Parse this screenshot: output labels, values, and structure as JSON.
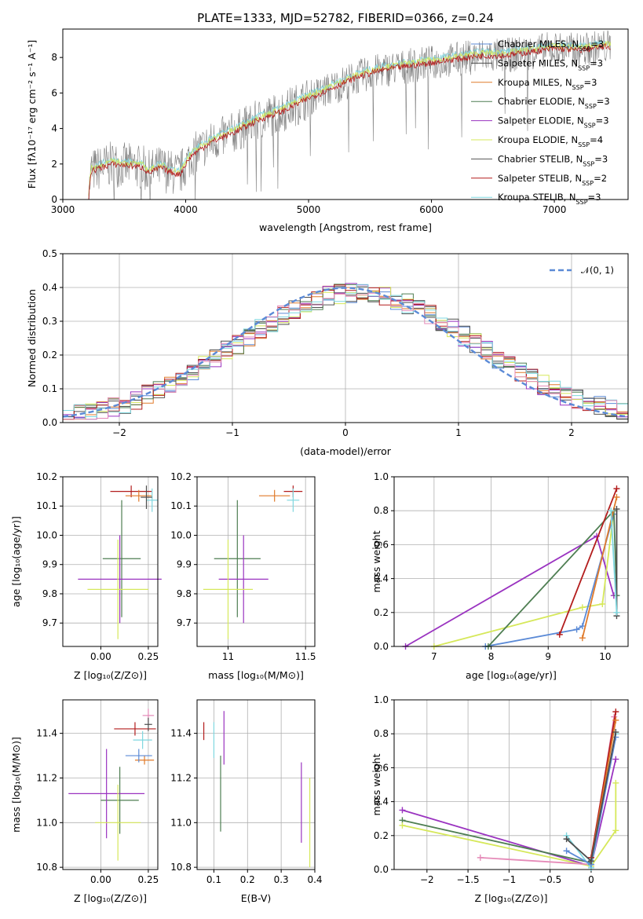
{
  "title": "PLATE=1333, MJD=52782, FIBERID=0366, z=0.24",
  "colors": {
    "Chabrier MILES": "#5b8ad6",
    "Salpeter MILES": "#4d4d4d",
    "Kroupa MILES": "#e07a2a",
    "Chabrier ELODIE": "#4e7e52",
    "Salpeter ELODIE": "#9a33c0",
    "Kroupa ELODIE": "#d6e85a",
    "Chabrier STELIB": "#555555",
    "Salpeter STELIB": "#b31d1d",
    "Kroupa STELIB": "#7fd7df",
    "data": "#808080",
    "extra": "#e58ab8"
  },
  "legend": [
    {
      "name": "Chabrier MILES",
      "n": "3"
    },
    {
      "name": "Salpeter MILES",
      "n": "3"
    },
    {
      "name": "Kroupa MILES",
      "n": "3"
    },
    {
      "name": "Chabrier ELODIE",
      "n": "3"
    },
    {
      "name": "Salpeter ELODIE",
      "n": "3"
    },
    {
      "name": "Kroupa ELODIE",
      "n": "4"
    },
    {
      "name": "Chabrier STELIB",
      "n": "3"
    },
    {
      "name": "Salpeter STELIB",
      "n": "2"
    },
    {
      "name": "Kroupa STELIB",
      "n": "3"
    }
  ],
  "chart_data": [
    {
      "type": "line",
      "title": "PLATE=1333, MJD=52782, FIBERID=0366, z=0.24",
      "xlabel": "wavelength [Angstrom, rest frame]",
      "ylabel": "Flux [f_λ 10^-17 erg cm^-2 s^-1 A^-1]",
      "xlim": [
        3000,
        7600
      ],
      "ylim": [
        0,
        9.6
      ],
      "xticks": [
        3000,
        4000,
        5000,
        6000,
        7000
      ],
      "yticks": [
        0,
        2,
        4,
        6,
        8
      ],
      "model_anchors": {
        "x": [
          3210,
          3230,
          3400,
          3550,
          3650,
          3700,
          3800,
          3850,
          3950,
          4000,
          4050,
          4200,
          4400,
          4600,
          4800,
          5000,
          5200,
          5400,
          5600,
          5800,
          6000,
          6200,
          6400,
          6600,
          6800,
          7000,
          7200,
          7400
        ],
        "y": [
          0.1,
          1.6,
          2.0,
          1.9,
          1.8,
          1.5,
          1.8,
          1.6,
          1.4,
          2.0,
          2.5,
          3.2,
          3.8,
          4.5,
          5.0,
          5.7,
          6.3,
          6.9,
          7.3,
          7.5,
          7.7,
          7.9,
          8.1,
          8.1,
          8.3,
          8.5,
          8.4,
          8.6
        ]
      },
      "legend_position": "top-right"
    },
    {
      "type": "histogram",
      "xlabel": "(data-model)/error",
      "ylabel": "Normed distribution",
      "xlim": [
        -2.5,
        2.5
      ],
      "ylim": [
        0,
        0.5
      ],
      "xticks": [
        -2,
        -1,
        0,
        1,
        2
      ],
      "yticks": [
        0,
        0.1,
        0.2,
        0.3,
        0.4,
        0.5
      ],
      "legend": "𝒩(0, 1)",
      "grid": true
    },
    {
      "type": "scatter",
      "xlabel": "Z [log10(Z/Z⊙)]",
      "ylabel": "age [log10(age/yr)]",
      "xlim": [
        -0.2,
        0.3
      ],
      "ylim": [
        9.62,
        10.2
      ],
      "xticks": [
        0.0,
        0.25
      ],
      "yticks": [
        9.7,
        9.8,
        9.9,
        10.0,
        10.1,
        10.2
      ],
      "points": [
        {
          "s": "Salpeter STELIB",
          "x": 0.16,
          "xe": 0.11,
          "y": 10.15,
          "ye": 0.02
        },
        {
          "s": "Kroupa MILES",
          "x": 0.2,
          "xe": 0.07,
          "y": 10.135,
          "ye": 0.02
        },
        {
          "s": "Chabrier ELODIE",
          "x": 0.11,
          "xe": 0.1,
          "y": 9.92,
          "ye": 0.2
        },
        {
          "s": "Salpeter ELODIE",
          "x": 0.1,
          "xe": 0.22,
          "y": 9.85,
          "ye": 0.15
        },
        {
          "s": "Kroupa ELODIE",
          "x": 0.09,
          "xe": 0.16,
          "y": 9.815,
          "ye": 0.17
        },
        {
          "s": "Kroupa STELIB",
          "x": 0.27,
          "xe": 0.03,
          "y": 10.12,
          "ye": 0.04
        },
        {
          "s": "Salpeter MILES",
          "x": 0.24,
          "xe": 0.03,
          "y": 10.13,
          "ye": 0.04
        }
      ]
    },
    {
      "type": "scatter",
      "xlabel": "mass [log10(M/M⊙)]",
      "ylabel": "",
      "xlim": [
        10.8,
        11.56
      ],
      "ylim": [
        9.62,
        10.2
      ],
      "xticks": [
        11.0,
        11.5
      ],
      "yticks": [
        9.7,
        9.8,
        9.9,
        10.0,
        10.1,
        10.2
      ],
      "points": [
        {
          "s": "Kroupa MILES",
          "x": 11.3,
          "xe": 0.1,
          "y": 10.135,
          "ye": 0.02
        },
        {
          "s": "Salpeter STELIB",
          "x": 11.42,
          "xe": 0.06,
          "y": 10.15,
          "ye": 0.02
        },
        {
          "s": "Chabrier ELODIE",
          "x": 11.06,
          "xe": 0.15,
          "y": 9.92,
          "ye": 0.2
        },
        {
          "s": "Salpeter ELODIE",
          "x": 11.1,
          "xe": 0.16,
          "y": 9.85,
          "ye": 0.15
        },
        {
          "s": "Kroupa ELODIE",
          "x": 11.0,
          "xe": 0.16,
          "y": 9.815,
          "ye": 0.17
        },
        {
          "s": "Kroupa STELIB",
          "x": 11.42,
          "xe": 0.04,
          "y": 10.12,
          "ye": 0.04
        }
      ]
    },
    {
      "type": "line",
      "xlabel": "age [log10(age/yr)]",
      "ylabel": "mass weight",
      "xlim": [
        6.3,
        10.4
      ],
      "ylim": [
        0,
        1.0
      ],
      "xticks": [
        7,
        8,
        9,
        10
      ],
      "yticks": [
        0,
        0.2,
        0.4,
        0.6,
        0.8,
        1.0
      ],
      "series": [
        {
          "s": "Salpeter ELODIE",
          "x": [
            6.5,
            9.85,
            10.15
          ],
          "y": [
            0.0,
            0.65,
            0.3
          ]
        },
        {
          "s": "Kroupa ELODIE",
          "x": [
            7.0,
            9.6,
            9.95,
            10.15
          ],
          "y": [
            0.0,
            0.23,
            0.25,
            0.8
          ]
        },
        {
          "s": "Chabrier MILES",
          "x": [
            7.9,
            9.5,
            9.6,
            10.15
          ],
          "y": [
            0.0,
            0.1,
            0.12,
            0.78
          ]
        },
        {
          "s": "Chabrier ELODIE",
          "x": [
            7.95,
            10.15,
            10.2
          ],
          "y": [
            0.0,
            0.8,
            0.3
          ]
        },
        {
          "s": "Salpeter STELIB",
          "x": [
            9.2,
            10.2
          ],
          "y": [
            0.07,
            0.93
          ]
        },
        {
          "s": "Kroupa MILES",
          "x": [
            9.6,
            10.2
          ],
          "y": [
            0.05,
            0.88
          ]
        },
        {
          "s": "Salpeter MILES",
          "x": [
            10.2,
            10.2
          ],
          "y": [
            0.18,
            0.81
          ]
        },
        {
          "s": "Kroupa STELIB",
          "x": [
            10.1,
            10.2
          ],
          "y": [
            0.8,
            0.2
          ]
        }
      ]
    },
    {
      "type": "scatter",
      "xlabel": "Z [log10(Z/Z⊙)]",
      "ylabel": "mass [log10(M/M⊙)]",
      "xlim": [
        -0.2,
        0.3
      ],
      "ylim": [
        10.79,
        11.55
      ],
      "xticks": [
        0.0,
        0.25
      ],
      "yticks": [
        10.8,
        11.0,
        11.2,
        11.4
      ],
      "points": [
        {
          "s": "Salpeter STELIB",
          "x": 0.18,
          "xe": 0.11,
          "y": 11.42,
          "ye": 0.03
        },
        {
          "s": "Kroupa MILES",
          "x": 0.23,
          "xe": 0.05,
          "y": 11.28,
          "ye": 0.02
        },
        {
          "s": "Chabrier MILES",
          "x": 0.2,
          "xe": 0.07,
          "y": 11.3,
          "ye": 0.03
        },
        {
          "s": "Kroupa STELIB",
          "x": 0.22,
          "xe": 0.05,
          "y": 11.37,
          "ye": 0.04
        },
        {
          "s": "Chabrier ELODIE",
          "x": 0.1,
          "xe": 0.1,
          "y": 11.1,
          "ye": 0.15
        },
        {
          "s": "Salpeter ELODIE",
          "x": 0.03,
          "xe": 0.2,
          "y": 11.13,
          "ye": 0.2
        },
        {
          "s": "Kroupa ELODIE",
          "x": 0.09,
          "xe": 0.12,
          "y": 11.0,
          "ye": 0.17
        },
        {
          "s": "extra",
          "x": 0.25,
          "xe": 0.03,
          "y": 11.48,
          "ye": 0.03
        },
        {
          "s": "Salpeter MILES",
          "x": 0.25,
          "xe": 0.02,
          "y": 11.44,
          "ye": 0.03
        }
      ]
    },
    {
      "type": "scatter",
      "xlabel": "E(B-V)",
      "ylabel": "",
      "xlim": [
        0.05,
        0.4
      ],
      "ylim": [
        10.79,
        11.55
      ],
      "xticks": [
        0.1,
        0.2,
        0.3,
        0.4
      ],
      "yticks": [
        10.8,
        11.0,
        11.2,
        11.4
      ],
      "points": [
        {
          "s": "Salpeter STELIB",
          "x": 0.07,
          "y": 11.41,
          "ye": 0.04
        },
        {
          "s": "Kroupa STELIB",
          "x": 0.1,
          "y": 11.37,
          "ye": 0.08
        },
        {
          "s": "Chabrier ELODIE",
          "x": 0.12,
          "y": 11.13,
          "ye": 0.17
        },
        {
          "s": "Salpeter ELODIE",
          "x": 0.13,
          "y": 11.38,
          "ye": 0.12
        },
        {
          "s": "Salpeter ELODIE",
          "x": 0.36,
          "y": 11.09,
          "ye": 0.18
        },
        {
          "s": "Kroupa ELODIE",
          "x": 0.385,
          "y": 11.0,
          "ye": 0.2
        }
      ]
    },
    {
      "type": "line",
      "xlabel": "Z [log10(Z/Z⊙)]",
      "ylabel": "mass weight",
      "xlim": [
        -2.4,
        0.45
      ],
      "ylim": [
        0,
        1.0
      ],
      "xticks": [
        -2.0,
        -1.5,
        -1.0,
        -0.5,
        0.0
      ],
      "yticks": [
        0,
        0.2,
        0.4,
        0.6,
        0.8,
        1.0
      ],
      "series": [
        {
          "s": "Salpeter ELODIE",
          "x": [
            -2.3,
            0.0,
            0.3
          ],
          "y": [
            0.35,
            0.02,
            0.65
          ]
        },
        {
          "s": "Chabrier ELODIE",
          "x": [
            -2.3,
            0.0,
            0.3
          ],
          "y": [
            0.29,
            0.04,
            0.8
          ]
        },
        {
          "s": "Kroupa ELODIE",
          "x": [
            -2.3,
            0.0,
            0.3,
            0.3
          ],
          "y": [
            0.26,
            0.02,
            0.23,
            0.51
          ]
        },
        {
          "s": "extra",
          "x": [
            -1.35,
            0.0,
            0.28
          ],
          "y": [
            0.07,
            0.03,
            0.9
          ]
        },
        {
          "s": "Kroupa STELIB",
          "x": [
            -0.3,
            0.0,
            0.3
          ],
          "y": [
            0.2,
            0.01,
            0.8
          ]
        },
        {
          "s": "Chabrier MILES",
          "x": [
            -0.3,
            0.0,
            0.3
          ],
          "y": [
            0.11,
            0.03,
            0.78
          ]
        },
        {
          "s": "Salpeter STELIB",
          "x": [
            0.0,
            0.3
          ],
          "y": [
            0.07,
            0.93
          ]
        },
        {
          "s": "Kroupa MILES",
          "x": [
            0.0,
            0.3
          ],
          "y": [
            0.05,
            0.88
          ]
        },
        {
          "s": "Salpeter MILES",
          "x": [
            -0.3,
            0.0,
            0.3
          ],
          "y": [
            0.18,
            0.05,
            0.81
          ]
        }
      ]
    }
  ]
}
